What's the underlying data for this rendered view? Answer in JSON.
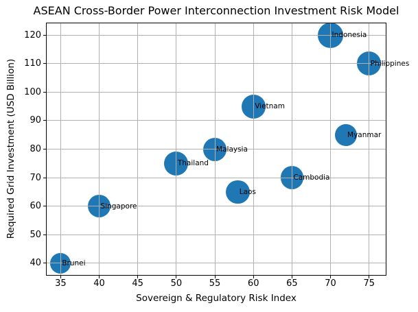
{
  "chart_data": {
    "type": "scatter",
    "title": "ASEAN Cross-Border Power Interconnection Investment Risk Model",
    "xlabel": "Sovereign & Regulatory Risk Index",
    "ylabel": "Required Grid Investment (USD Billion)",
    "xlim": [
      33.1,
      77.25
    ],
    "ylim": [
      35.6,
      124.4
    ],
    "xticks": [
      35,
      40,
      45,
      50,
      55,
      60,
      65,
      70,
      75
    ],
    "yticks": [
      40,
      50,
      60,
      70,
      80,
      90,
      100,
      110,
      120
    ],
    "grid": true,
    "legend": false,
    "colors": {
      "marker": "#1f77b4",
      "grid": "#b0b0b0",
      "spine": "#000000",
      "text": "#000000",
      "background": "#ffffff"
    },
    "points": [
      {
        "label": "Brunei",
        "x": 35,
        "y": 40,
        "radius_px": 15.0
      },
      {
        "label": "Singapore",
        "x": 40,
        "y": 60,
        "radius_px": 16.7
      },
      {
        "label": "Thailand",
        "x": 50,
        "y": 75,
        "radius_px": 17.5
      },
      {
        "label": "Malaysia",
        "x": 55,
        "y": 80,
        "radius_px": 17.0
      },
      {
        "label": "Laos",
        "x": 58,
        "y": 65,
        "radius_px": 17.3
      },
      {
        "label": "Vietnam",
        "x": 60,
        "y": 95,
        "radius_px": 17.5
      },
      {
        "label": "Cambodia",
        "x": 65,
        "y": 70,
        "radius_px": 16.6
      },
      {
        "label": "Indonesia",
        "x": 70,
        "y": 120,
        "radius_px": 18.3
      },
      {
        "label": "Myanmar",
        "x": 72,
        "y": 85,
        "radius_px": 15.9
      },
      {
        "label": "Philippines",
        "x": 75,
        "y": 110,
        "radius_px": 17.5
      }
    ]
  }
}
